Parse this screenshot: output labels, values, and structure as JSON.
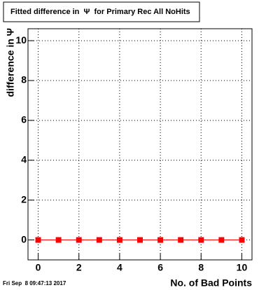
{
  "chart_data": {
    "type": "scatter",
    "title": "Fitted difference in  Ψ  for Primary Rec All NoHits",
    "x_label": "No. of Bad Points",
    "y_label": "difference in Ψ",
    "footer": "Fri Sep  8 09:47:13 2017",
    "x": [
      0,
      1,
      2,
      3,
      4,
      5,
      6,
      7,
      8,
      9,
      10
    ],
    "values": [
      0,
      0,
      0,
      0,
      0,
      0,
      0,
      0,
      0,
      0,
      0
    ],
    "color": "#ff0000",
    "xlim": [
      -0.5,
      10.5
    ],
    "ylim": [
      -1,
      10.6
    ],
    "xticks": [
      0,
      2,
      4,
      6,
      8,
      10
    ],
    "yticks": [
      0,
      2,
      4,
      6,
      8,
      10
    ],
    "grid": true
  }
}
